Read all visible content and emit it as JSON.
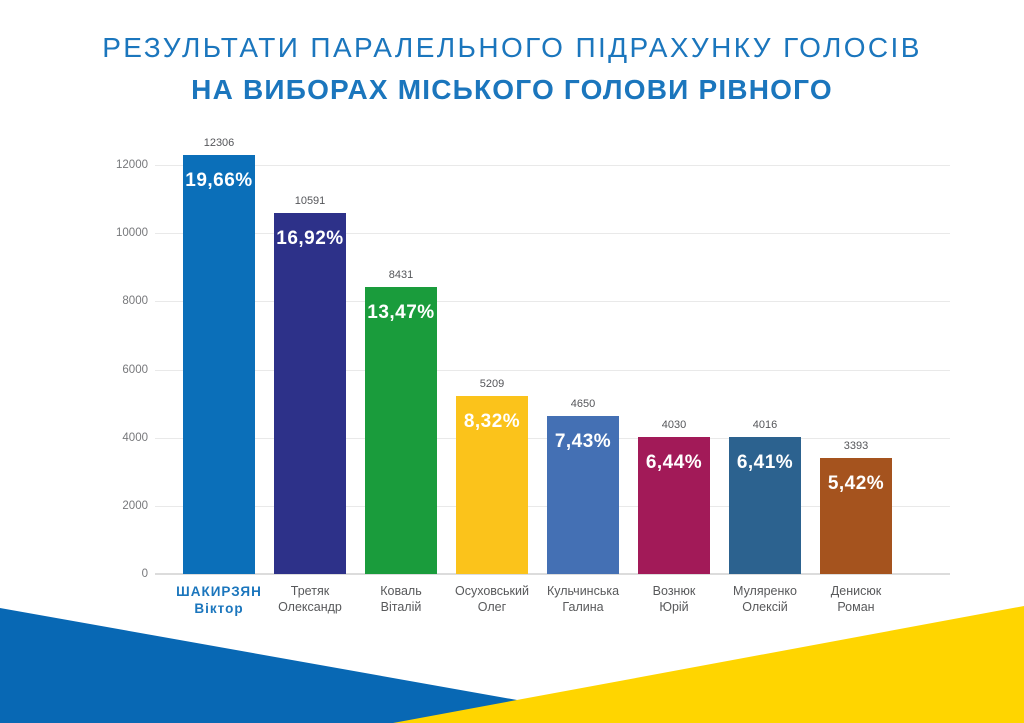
{
  "title": {
    "line1": "РЕЗУЛЬТАТИ ПАРАЛЕЛЬНОГО ПІДРАХУНКУ ГОЛОСІВ",
    "line2": "НА ВИБОРАХ МІСЬКОГО ГОЛОВИ РІВНОГО",
    "color": "#1B76BD"
  },
  "chart_data": {
    "type": "bar",
    "title": "РЕЗУЛЬТАТИ ПАРАЛЕЛЬНОГО ПІДРАХУНКУ ГОЛОСІВ НА ВИБОРАХ МІСЬКОГО ГОЛОВИ РІВНОГО",
    "xlabel": "",
    "ylabel": "",
    "ylim": [
      0,
      12800
    ],
    "y_ticks": [
      0,
      2000,
      4000,
      6000,
      8000,
      10000,
      12000
    ],
    "grid": true,
    "legend": "none",
    "bars": [
      {
        "name_line1": "ШАКИРЗЯН",
        "name_line2": "Віктор",
        "votes": 12306,
        "percent": "19,66%",
        "color": "#0B6FB9",
        "highlight": true
      },
      {
        "name_line1": "Третяк",
        "name_line2": "Олександр",
        "votes": 10591,
        "percent": "16,92%",
        "color": "#2D3189",
        "highlight": false
      },
      {
        "name_line1": "Коваль",
        "name_line2": "Віталій",
        "votes": 8431,
        "percent": "13,47%",
        "color": "#1A9C3C",
        "highlight": false
      },
      {
        "name_line1": "Осуховський",
        "name_line2": "Олег",
        "votes": 5209,
        "percent": "8,32%",
        "color": "#FBC31B",
        "highlight": false
      },
      {
        "name_line1": "Кульчинська",
        "name_line2": "Галина",
        "votes": 4650,
        "percent": "7,43%",
        "color": "#4470B4",
        "highlight": false
      },
      {
        "name_line1": "Вознюк",
        "name_line2": "Юрій",
        "votes": 4030,
        "percent": "6,44%",
        "color": "#A21A58",
        "highlight": false
      },
      {
        "name_line1": "Муляренко",
        "name_line2": "Олексій",
        "votes": 4016,
        "percent": "6,41%",
        "color": "#2C628F",
        "highlight": false
      },
      {
        "name_line1": "Денисюк",
        "name_line2": "Роман",
        "votes": 3393,
        "percent": "5,42%",
        "color": "#A5531E",
        "highlight": false
      }
    ]
  },
  "decoration": {
    "flag_blue": "#0868B4",
    "flag_yellow": "#FFD500"
  },
  "colors": {
    "grid_line": "#E9E9E9",
    "axis_line": "#DCDCDC",
    "tick_label": "#77787B",
    "value_label": "#55565A",
    "name_label": "#58595B"
  }
}
